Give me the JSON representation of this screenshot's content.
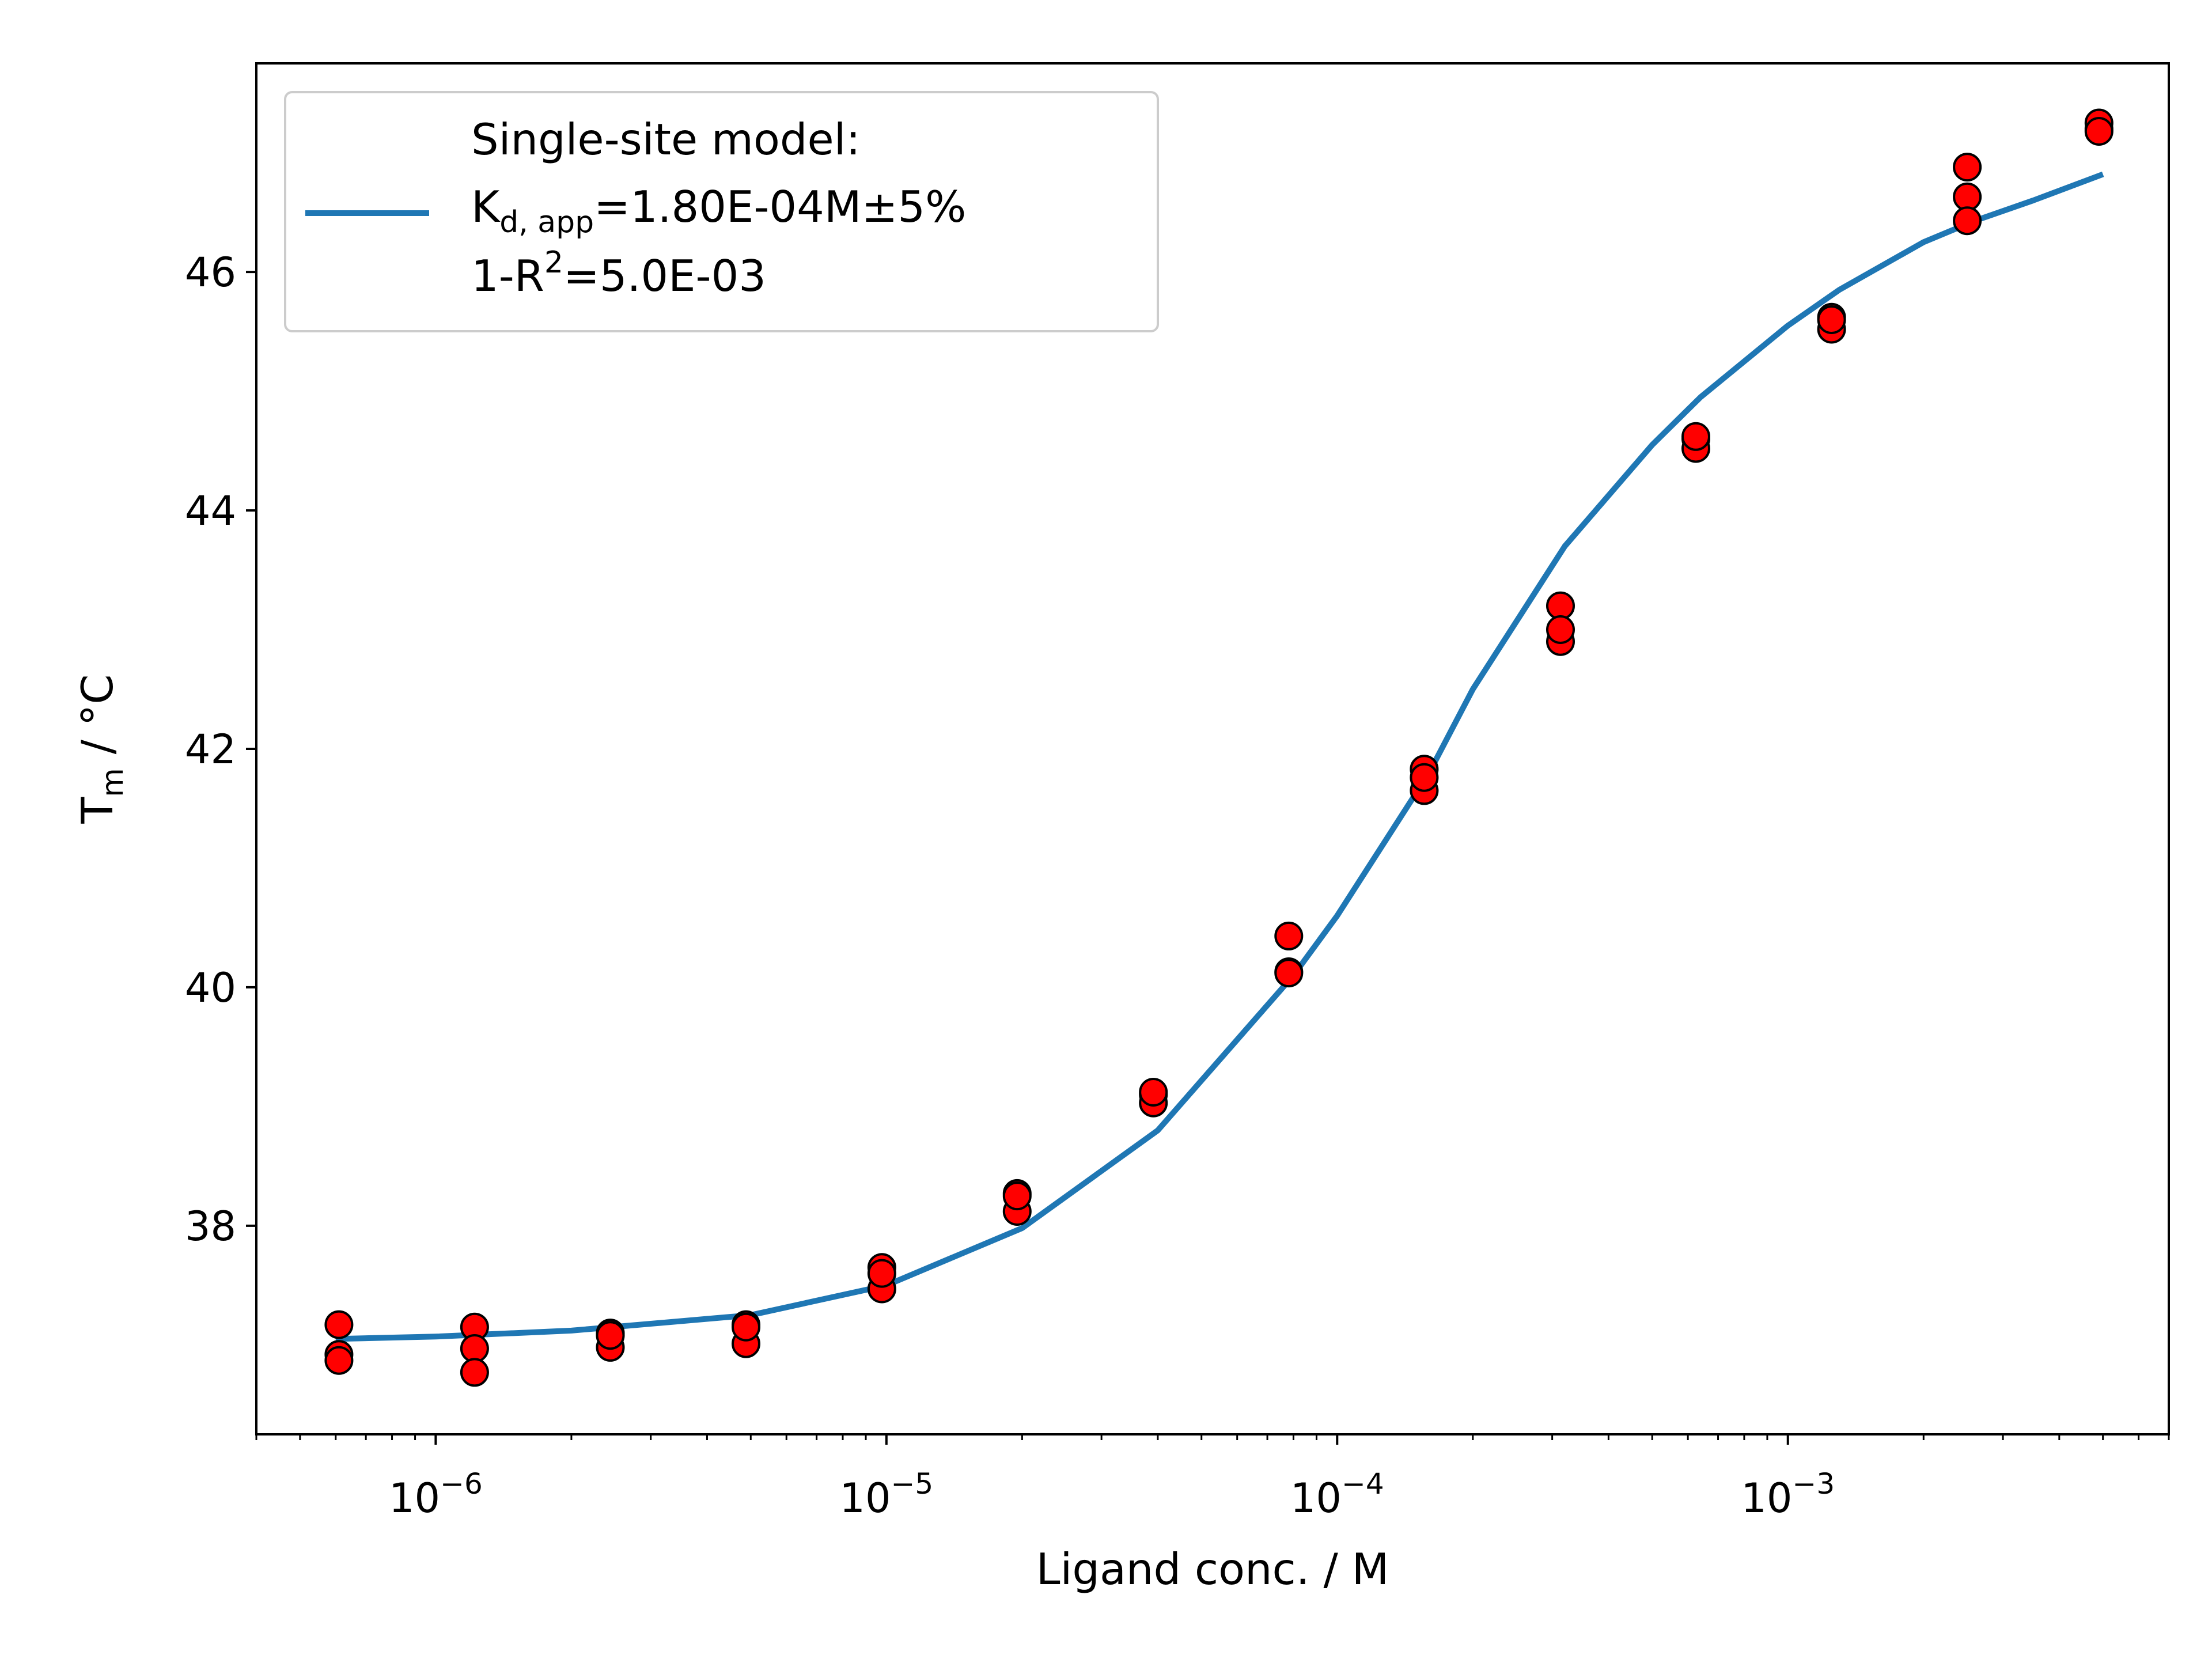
{
  "chart_data": {
    "type": "scatter",
    "xscale": "log",
    "xlabel": "Ligand conc. / M",
    "ylabel_main": "T",
    "ylabel_sub": "m",
    "ylabel_rest": " / °C",
    "xlim": [
      4e-07,
      0.007
    ],
    "ylim": [
      36.25,
      47.75
    ],
    "grid": false,
    "legend_position": "upper-left",
    "x_tick_labels": [
      {
        "value": 1e-06,
        "base": "10",
        "exp": "−6"
      },
      {
        "value": 1e-05,
        "base": "10",
        "exp": "−5"
      },
      {
        "value": 0.0001,
        "base": "10",
        "exp": "−4"
      },
      {
        "value": 0.001,
        "base": "10",
        "exp": "−3"
      }
    ],
    "y_ticks": [
      38,
      40,
      42,
      44,
      46
    ],
    "colors": {
      "fit_line": "#1f77b4",
      "marker_fill": "#ff0000",
      "marker_edge": "#000000"
    },
    "fit": {
      "name_line1": "Single-site model:",
      "name_line2_main": "K",
      "name_line2_sub": "d, app",
      "name_line2_rest": "=1.80E-04M±5%",
      "name_line3_main": "1-R",
      "name_line3_sup": "2",
      "name_line3_rest": "=5.0E-03",
      "x": [
        6e-07,
        1e-06,
        2e-06,
        5e-06,
        1e-05,
        2e-05,
        4e-05,
        8e-05,
        0.0001,
        0.00016,
        0.0002,
        0.00032,
        0.0005,
        0.00064,
        0.001,
        0.0013,
        0.002,
        0.0026,
        0.0035,
        0.005
      ],
      "y": [
        37.05,
        37.07,
        37.12,
        37.25,
        37.5,
        37.98,
        38.8,
        40.1,
        40.6,
        41.8,
        42.5,
        43.7,
        44.55,
        44.95,
        45.55,
        45.85,
        46.25,
        46.43,
        46.6,
        46.82
      ]
    },
    "series": [
      {
        "x": [
          6.1e-07,
          6.1e-07,
          6.1e-07,
          1.22e-06,
          1.22e-06,
          1.22e-06,
          2.44e-06,
          2.44e-06,
          2.44e-06,
          4.88e-06,
          4.88e-06,
          4.88e-06,
          9.77e-06,
          9.77e-06,
          9.77e-06,
          1.95e-05,
          1.95e-05,
          1.95e-05,
          3.91e-05,
          3.91e-05,
          3.91e-05,
          7.81e-05,
          7.81e-05,
          7.81e-05,
          0.000156,
          0.000156,
          0.000156,
          0.000313,
          0.000313,
          0.000313,
          0.000625,
          0.000625,
          0.000625,
          0.00125,
          0.00125,
          0.00125,
          0.0025,
          0.0025,
          0.0025,
          0.0049,
          0.0049,
          0.0049
        ],
        "y": [
          37.17,
          36.92,
          36.87,
          37.15,
          36.97,
          36.77,
          37.1,
          36.98,
          37.08,
          37.17,
          37.01,
          37.15,
          37.65,
          37.47,
          37.6,
          38.27,
          38.12,
          38.25,
          39.1,
          39.03,
          39.12,
          40.43,
          40.13,
          40.12,
          41.83,
          41.65,
          41.76,
          43.2,
          42.9,
          43.0,
          44.6,
          44.52,
          44.62,
          45.62,
          45.52,
          45.6,
          46.88,
          46.63,
          46.43,
          47.2,
          47.25,
          47.18
        ]
      }
    ]
  }
}
